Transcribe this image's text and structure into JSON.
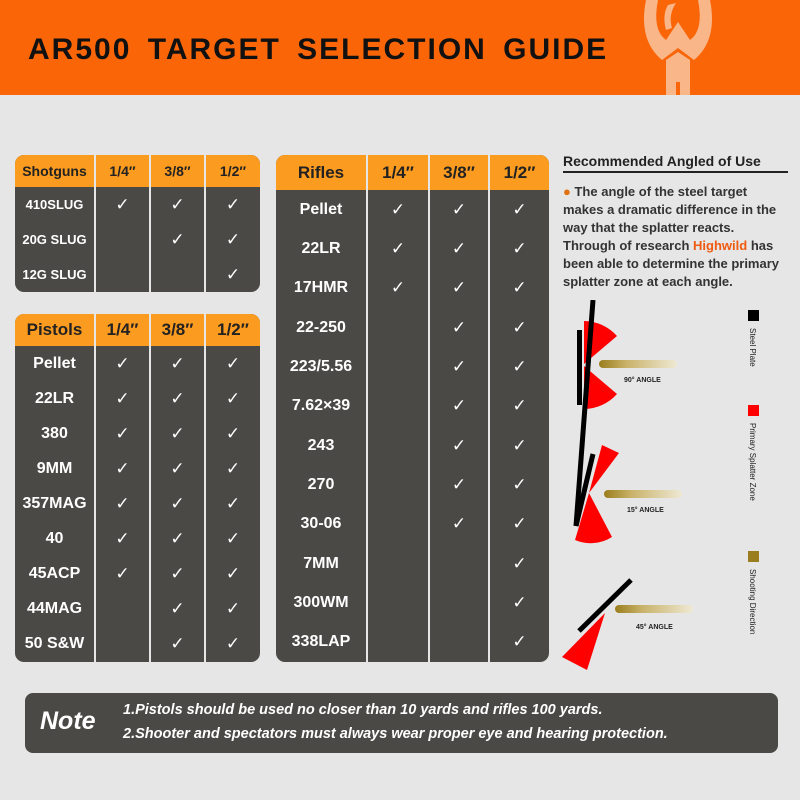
{
  "header": {
    "title": "AR500  TARGET  SELECTION  GUIDE",
    "logo_text": "Highwild"
  },
  "colors": {
    "header": "#fa6508",
    "table_header": "#fb9b1f",
    "table_body": "#4b4945",
    "splatter": "#ff0000",
    "steel": "#000000",
    "shooting": "#9a7d1c"
  },
  "sizes": [
    "1/4″",
    "3/8″",
    "1/2″"
  ],
  "shotguns": {
    "label": "Shotguns",
    "rows": [
      {
        "name": "410SLUG",
        "checks": [
          true,
          true,
          true
        ]
      },
      {
        "name": "20G SLUG",
        "checks": [
          false,
          true,
          true
        ]
      },
      {
        "name": "12G SLUG",
        "checks": [
          false,
          false,
          true
        ]
      }
    ]
  },
  "pistols": {
    "label": "Pistols",
    "rows": [
      {
        "name": "Pellet",
        "checks": [
          true,
          true,
          true
        ]
      },
      {
        "name": "22LR",
        "checks": [
          true,
          true,
          true
        ]
      },
      {
        "name": "380",
        "checks": [
          true,
          true,
          true
        ]
      },
      {
        "name": "9MM",
        "checks": [
          true,
          true,
          true
        ]
      },
      {
        "name": "357MAG",
        "checks": [
          true,
          true,
          true
        ]
      },
      {
        "name": "40",
        "checks": [
          true,
          true,
          true
        ]
      },
      {
        "name": "45ACP",
        "checks": [
          true,
          true,
          true
        ]
      },
      {
        "name": "44MAG",
        "checks": [
          false,
          true,
          true
        ]
      },
      {
        "name": "50 S&W",
        "checks": [
          false,
          true,
          true
        ]
      }
    ]
  },
  "rifles": {
    "label": "Rifles",
    "rows": [
      {
        "name": "Pellet",
        "checks": [
          true,
          true,
          true
        ]
      },
      {
        "name": "22LR",
        "checks": [
          true,
          true,
          true
        ]
      },
      {
        "name": "17HMR",
        "checks": [
          true,
          true,
          true
        ]
      },
      {
        "name": "22-250",
        "checks": [
          false,
          true,
          true
        ]
      },
      {
        "name": "223/5.56",
        "checks": [
          false,
          true,
          true
        ]
      },
      {
        "name": "7.62×39",
        "checks": [
          false,
          true,
          true
        ]
      },
      {
        "name": "243",
        "checks": [
          false,
          true,
          true
        ]
      },
      {
        "name": "270",
        "checks": [
          false,
          true,
          true
        ]
      },
      {
        "name": "30-06",
        "checks": [
          false,
          true,
          true
        ]
      },
      {
        "name": "7MM",
        "checks": [
          false,
          false,
          true
        ]
      },
      {
        "name": "300WM",
        "checks": [
          false,
          false,
          true
        ]
      },
      {
        "name": "338LAP",
        "checks": [
          false,
          false,
          true
        ]
      }
    ]
  },
  "check_glyph": "✓",
  "angled": {
    "title": "Recommended Angled of Use",
    "text_a": "The angle of the steel target makes a dramatic difference in the way that the splatter reacts. Through of research ",
    "brand": "Highwild",
    "text_b": " has been able to determine the primary splatter zone at each angle.",
    "angles": [
      "90° ANGLE",
      "15° ANGLE",
      "45° ANGLE"
    ],
    "legend": [
      "Steel Plate",
      "Primary Splatter Zone",
      "Shooting Direction"
    ]
  },
  "note": {
    "label": "Note",
    "lines": [
      "1.Pistols should be used no closer than 10 yards and rifles 100 yards.",
      "2.Shooter and spectators must always wear proper eye and hearing protection."
    ]
  }
}
